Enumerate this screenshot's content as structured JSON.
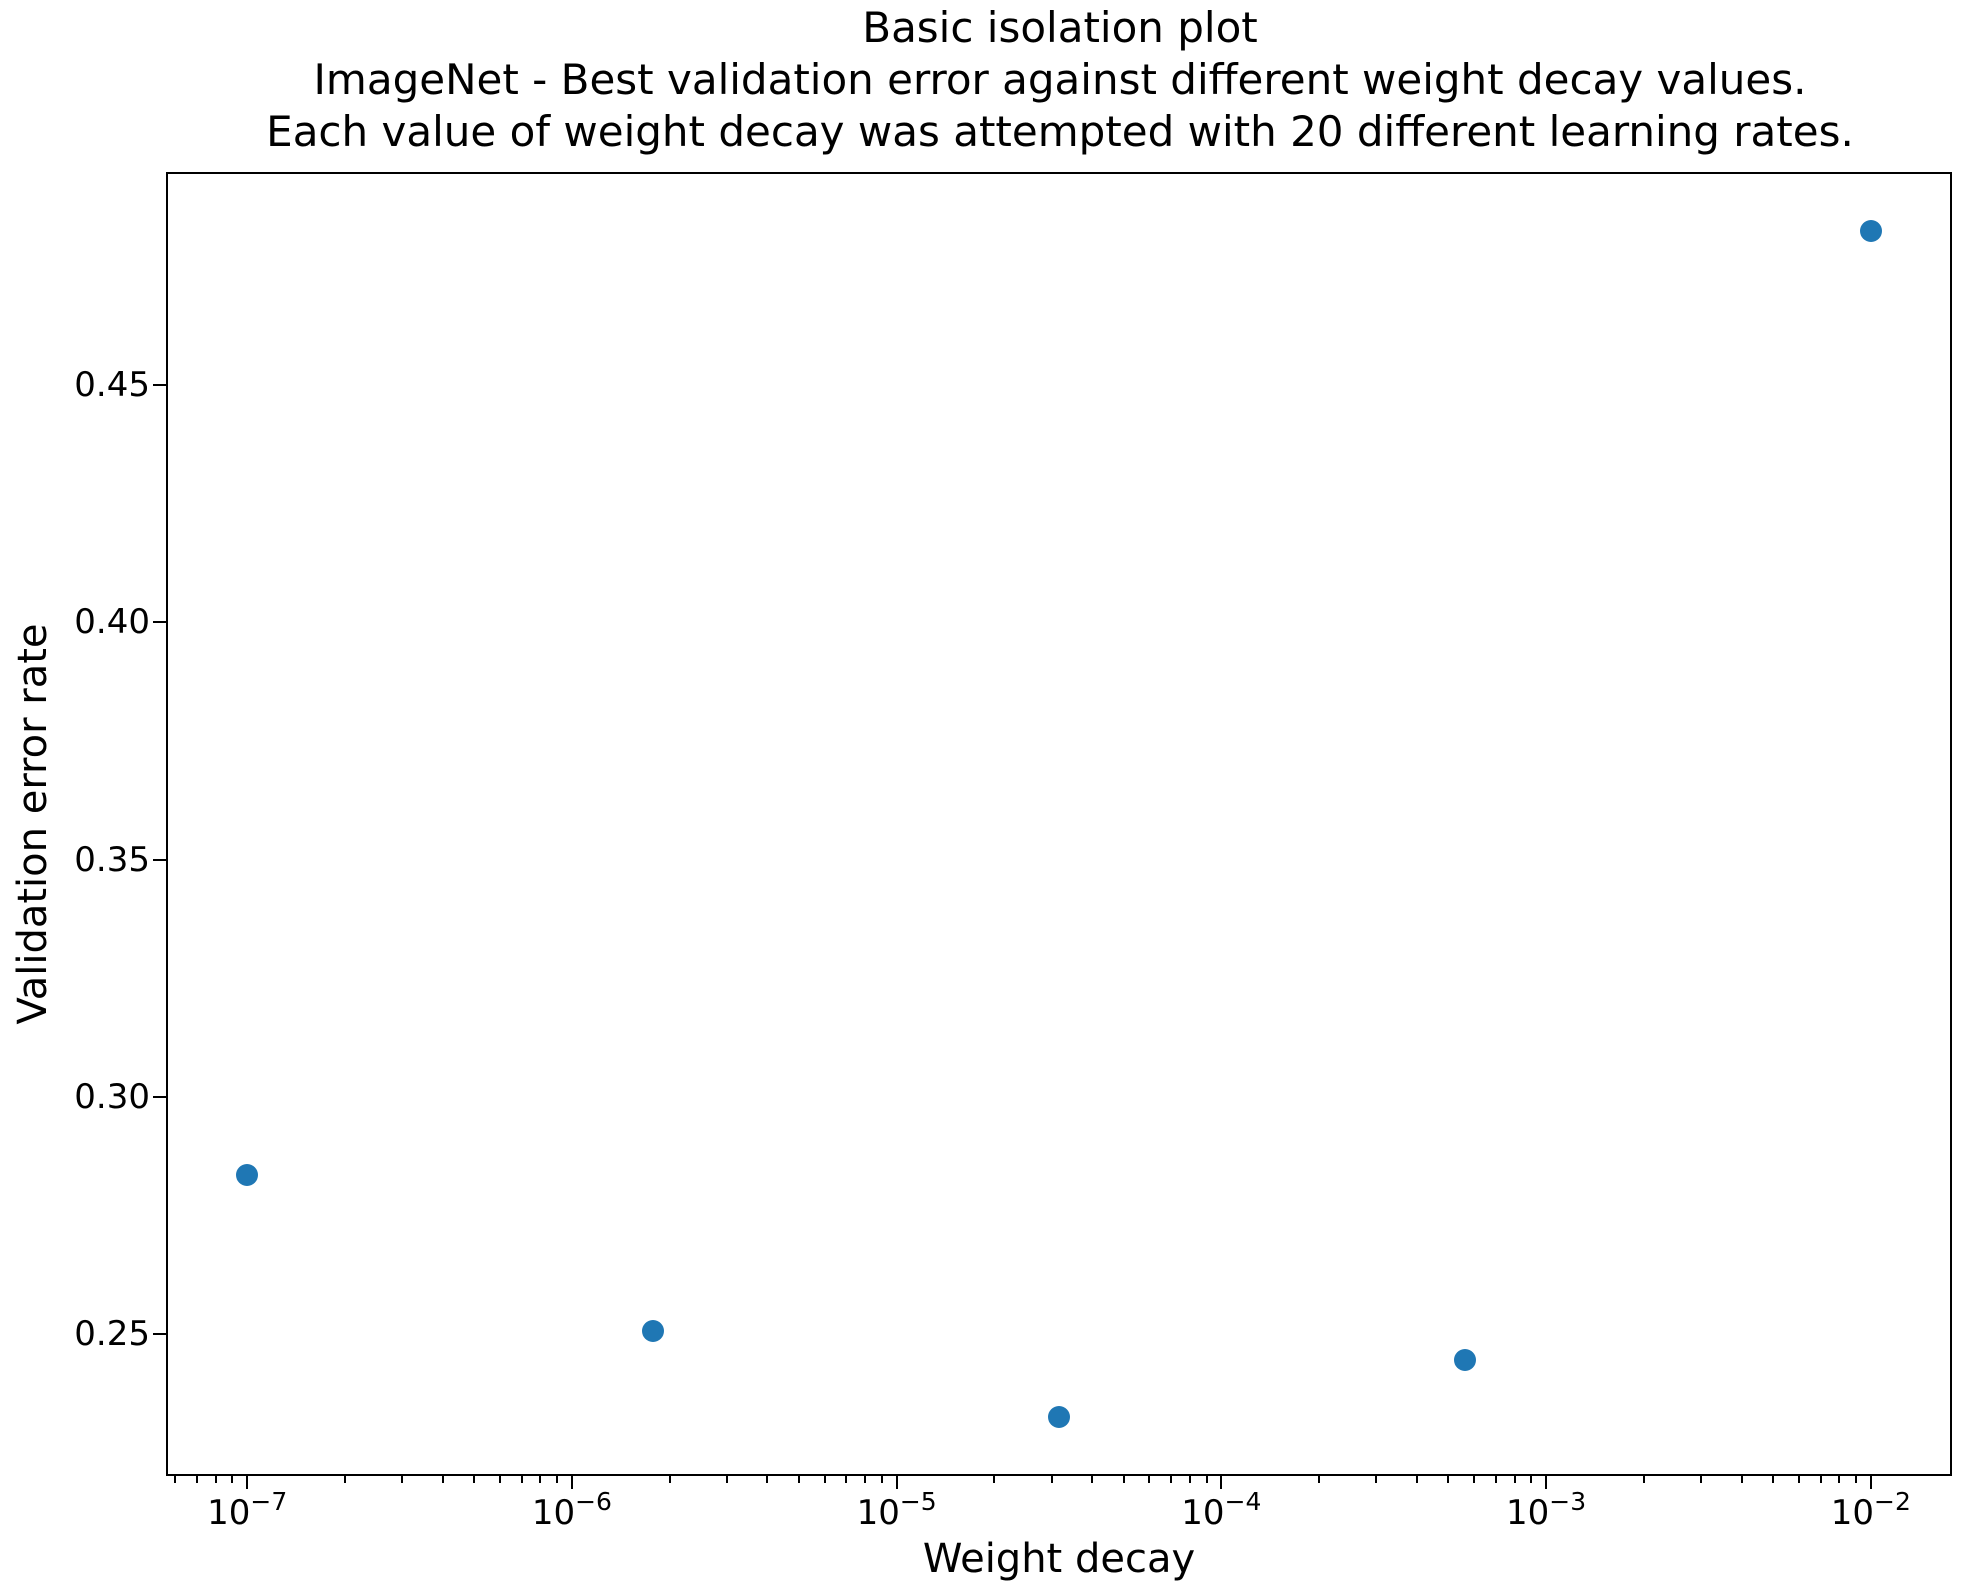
{
  "figure": {
    "background": "#ffffff",
    "title": "Basic isolation plot\nImageNet - Best validation error against different weight decay values.\nEach value of weight decay was attempted with 20 different learning rates."
  },
  "chart_data": {
    "type": "scatter",
    "title_lines": [
      "Basic isolation plot",
      "ImageNet - Best validation error against different weight decay values.",
      "Each value of weight decay was attempted with 20 different learning rates."
    ],
    "xlabel": "Weight decay",
    "ylabel": "Validation error rate",
    "x_scale": "log",
    "y_scale": "linear",
    "xlim_log10": [
      -7.25,
      -1.75
    ],
    "ylim": [
      0.22,
      0.495
    ],
    "grid": false,
    "legend": false,
    "marker_color": "#1f77b4",
    "axis_color": "#000000",
    "points": [
      {
        "weight_decay": 1e-07,
        "error": 0.2835
      },
      {
        "weight_decay": 1.7783e-06,
        "error": 0.2505
      },
      {
        "weight_decay": 3.1623e-05,
        "error": 0.2325
      },
      {
        "weight_decay": 0.00056234,
        "error": 0.2445
      },
      {
        "weight_decay": 0.01,
        "error": 0.4825
      }
    ],
    "x_ticks": [
      {
        "value": 1e-07,
        "base": "10",
        "sup": "−7"
      },
      {
        "value": 1e-06,
        "base": "10",
        "sup": "−6"
      },
      {
        "value": 1e-05,
        "base": "10",
        "sup": "−5"
      },
      {
        "value": 0.0001,
        "base": "10",
        "sup": "−4"
      },
      {
        "value": 0.001,
        "base": "10",
        "sup": "−3"
      },
      {
        "value": 0.01,
        "base": "10",
        "sup": "−2"
      }
    ],
    "y_ticks": [
      {
        "value": 0.25,
        "label": "0.25"
      },
      {
        "value": 0.3,
        "label": "0.30"
      },
      {
        "value": 0.35,
        "label": "0.35"
      },
      {
        "value": 0.4,
        "label": "0.40"
      },
      {
        "value": 0.45,
        "label": "0.45"
      }
    ]
  }
}
